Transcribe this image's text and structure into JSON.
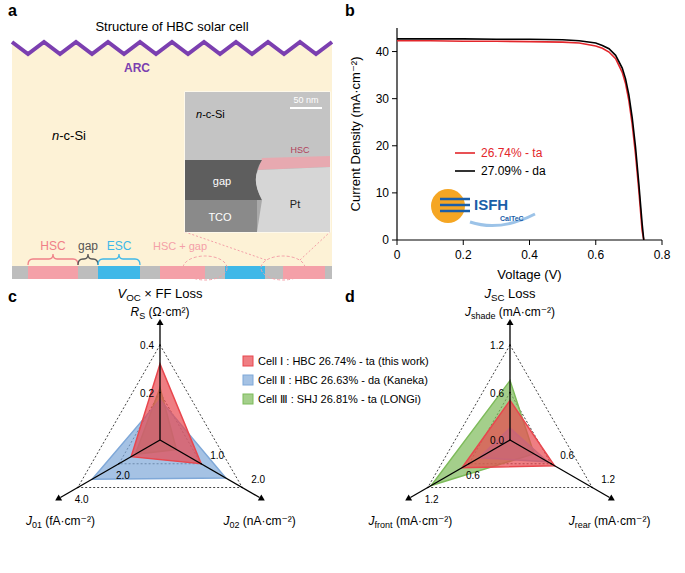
{
  "diagram": {
    "panel": "a",
    "title": "Structure of HBC solar cell",
    "arc": "ARC",
    "substrate": "n-c-Si",
    "contacts": {
      "hsc": "HSC",
      "gap": "gap",
      "esc": "ESC",
      "hsc_gap": "HSC + gap"
    },
    "inset": {
      "substrate": "n-c-Si",
      "hsc": "HSC",
      "gap": "gap",
      "tco": "TCO",
      "pt": "Pt",
      "scale_bar": "50 nm"
    }
  },
  "chart_data": [
    {
      "panel": "b",
      "type": "line",
      "x_label": "Voltage (V)",
      "y_label": "Current Density (mA·cm⁻²)",
      "x": [
        0,
        0.1,
        0.2,
        0.3,
        0.4,
        0.5,
        0.55,
        0.6,
        0.62,
        0.64,
        0.66,
        0.68,
        0.69,
        0.7,
        0.71,
        0.72,
        0.73,
        0.74,
        0.745
      ],
      "xlim": [
        0,
        0.8
      ],
      "xticks": [
        0,
        0.2,
        0.4,
        0.6,
        0.8
      ],
      "ylim": [
        0,
        45
      ],
      "yticks": [
        0,
        10,
        20,
        30,
        40
      ],
      "series": [
        {
          "name": "26.74% - ta",
          "color": "#e3262b",
          "values": [
            42.3,
            42.3,
            42.2,
            42.2,
            42.1,
            42.0,
            41.8,
            41.2,
            40.7,
            39.9,
            38.5,
            35.6,
            33.2,
            29.6,
            24.6,
            18.2,
            10.6,
            2.0,
            0
          ]
        },
        {
          "name": "27.09% - da",
          "color": "#000000",
          "values": [
            42.7,
            42.7,
            42.7,
            42.6,
            42.6,
            42.5,
            42.3,
            41.8,
            41.3,
            40.6,
            39.2,
            36.5,
            34.2,
            30.8,
            26.0,
            19.8,
            12.0,
            3.5,
            0
          ]
        }
      ],
      "legend": "center",
      "annotations": [
        "ISFH",
        "CalTeC"
      ]
    },
    {
      "panel": "c",
      "type": "radar",
      "title": {
        "main": "V",
        "sub": "OC",
        "tail": " × FF Loss"
      },
      "axes": [
        {
          "label": {
            "main": "R",
            "sub": "S",
            "tail": " (Ω·cm²)"
          },
          "lim": [
            0,
            0.4
          ],
          "ticks": [
            0.2,
            0.4
          ]
        },
        {
          "label": {
            "main": "J",
            "sub": "01",
            "tail": " (fA·cm⁻²)"
          },
          "lim": [
            0,
            4
          ],
          "ticks": [
            {
              "value": 2,
              "label": "2.0"
            },
            {
              "value": 4,
              "label": "4.0"
            }
          ]
        },
        {
          "label": {
            "main": "J",
            "sub": "02",
            "tail": " (nA·cm⁻²)"
          },
          "lim": [
            0,
            2
          ],
          "ticks": [
            {
              "value": 1,
              "label": "1.0"
            },
            {
              "value": 2,
              "label": "2.0"
            }
          ]
        }
      ],
      "series": [
        {
          "name": "Cell Ⅰ : HBC 26.74% - ta (this work)",
          "color": "#e8474e",
          "values": [
            0.32,
            1.4,
            1.0
          ]
        },
        {
          "name": "Cell Ⅱ : HBC 26.63% - da (Kaneka)",
          "color": "#7fa8d8",
          "values": [
            0.17,
            3.3,
            1.6
          ]
        },
        {
          "name": "Cell Ⅲ : SHJ 26.81% - ta (LONGi)",
          "color": "#7dbb5a",
          "values": [
            0.22,
            1.2,
            0.4
          ]
        }
      ],
      "legend": "right"
    },
    {
      "panel": "d",
      "type": "radar",
      "title": {
        "main": "J",
        "sub": "SC",
        "tail": " Loss"
      },
      "axes": [
        {
          "label": {
            "main": "J",
            "sub": "shade",
            "tail": " (mA·cm⁻²)"
          },
          "lim": [
            0,
            1.2
          ],
          "ticks": [
            {
              "value": 0,
              "label": "0.0"
            },
            0.6,
            1.2
          ]
        },
        {
          "label": {
            "main": "J",
            "sub": "front",
            "tail": " (mA·cm⁻²)"
          },
          "lim": [
            0,
            1.2
          ],
          "ticks": [
            0.6,
            1.2
          ]
        },
        {
          "label": {
            "main": "J",
            "sub": "rear",
            "tail": " (mA·cm⁻²)"
          },
          "lim": [
            0,
            1.2
          ],
          "ticks": [
            0.6,
            1.2
          ]
        }
      ],
      "series": [
        {
          "color": "#e8474e",
          "values": [
            0.5,
            0.7,
            0.65
          ]
        },
        {
          "color": "#7fa8d8",
          "values": [
            0.15,
            0.45,
            0.55
          ]
        },
        {
          "color": "#7dbb5a",
          "values": [
            0.75,
            1.15,
            0.35
          ]
        }
      ]
    }
  ]
}
